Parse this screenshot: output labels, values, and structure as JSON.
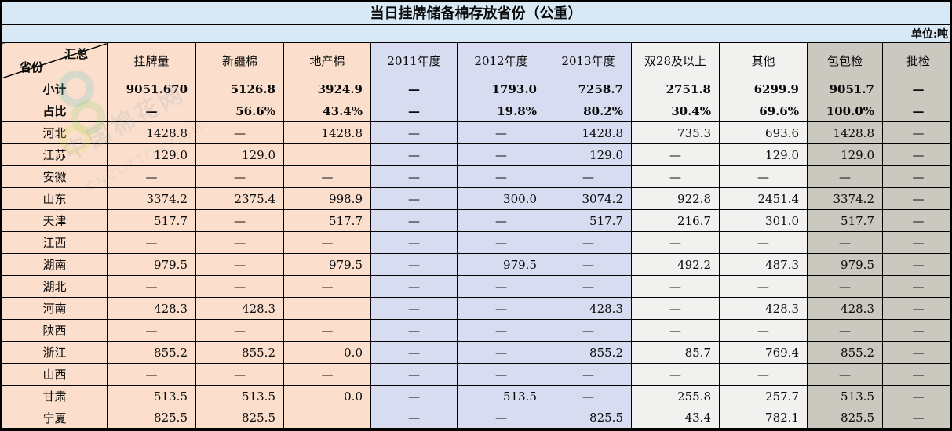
{
  "title": "当日挂牌储备棉存放省份（公重）",
  "unit_label": "单位:吨",
  "corner": {
    "top_right": "汇总",
    "bottom_left": "省份"
  },
  "watermark": {
    "text": "中国棉花网",
    "subtext": "CNCOTTON.COM"
  },
  "colors": {
    "band_blue": "#d8e8f4",
    "peach": "#fbdfcc",
    "lavender": "#d8dcf0",
    "light_gray": "#f1f1ef",
    "dark_gray": "#cbc8c0",
    "border": "#000000"
  },
  "table": {
    "columns": [
      "挂牌量",
      "新疆棉",
      "地产棉",
      "2011年度",
      "2012年度",
      "2013年度",
      "双28及以上",
      "其他",
      "包包检",
      "批检"
    ],
    "rows": [
      {
        "label": "小计",
        "cells": [
          "9051.670",
          "5126.8",
          "3924.9",
          "—",
          "1793.0",
          "7258.7",
          "2751.8",
          "6299.9",
          "9051.7",
          "—"
        ]
      },
      {
        "label": "占比",
        "cells": [
          "—",
          "56.6%",
          "43.4%",
          "—",
          "19.8%",
          "80.2%",
          "30.4%",
          "69.6%",
          "100.0%",
          "—"
        ]
      },
      {
        "label": "河北",
        "cells": [
          "1428.8",
          "—",
          "1428.8",
          "—",
          "—",
          "1428.8",
          "735.3",
          "693.6",
          "1428.8",
          "—"
        ]
      },
      {
        "label": "江苏",
        "cells": [
          "129.0",
          "129.0",
          "",
          "—",
          "—",
          "129.0",
          "—",
          "129.0",
          "129.0",
          "—"
        ]
      },
      {
        "label": "安徽",
        "cells": [
          "—",
          "—",
          "—",
          "—",
          "—",
          "—",
          "—",
          "—",
          "—",
          "—"
        ]
      },
      {
        "label": "山东",
        "cells": [
          "3374.2",
          "2375.4",
          "998.9",
          "—",
          "300.0",
          "3074.2",
          "922.8",
          "2451.4",
          "3374.2",
          "—"
        ]
      },
      {
        "label": "天津",
        "cells": [
          "517.7",
          "—",
          "517.7",
          "—",
          "—",
          "517.7",
          "216.7",
          "301.0",
          "517.7",
          "—"
        ]
      },
      {
        "label": "江西",
        "cells": [
          "—",
          "—",
          "—",
          "—",
          "—",
          "—",
          "—",
          "—",
          "—",
          "—"
        ]
      },
      {
        "label": "湖南",
        "cells": [
          "979.5",
          "—",
          "979.5",
          "—",
          "979.5",
          "—",
          "492.2",
          "487.3",
          "979.5",
          "—"
        ]
      },
      {
        "label": "湖北",
        "cells": [
          "—",
          "—",
          "—",
          "—",
          "—",
          "—",
          "—",
          "—",
          "—",
          "—"
        ]
      },
      {
        "label": "河南",
        "cells": [
          "428.3",
          "428.3",
          "",
          "—",
          "—",
          "428.3",
          "—",
          "428.3",
          "428.3",
          "—"
        ]
      },
      {
        "label": "陕西",
        "cells": [
          "—",
          "—",
          "—",
          "—",
          "—",
          "—",
          "—",
          "—",
          "—",
          "—"
        ]
      },
      {
        "label": "浙江",
        "cells": [
          "855.2",
          "855.2",
          "0.0",
          "—",
          "—",
          "855.2",
          "85.7",
          "769.4",
          "855.2",
          "—"
        ]
      },
      {
        "label": "山西",
        "cells": [
          "—",
          "—",
          "—",
          "—",
          "—",
          "—",
          "—",
          "—",
          "—",
          "—"
        ]
      },
      {
        "label": "甘肃",
        "cells": [
          "513.5",
          "513.5",
          "0.0",
          "—",
          "513.5",
          "—",
          "255.8",
          "257.7",
          "513.5",
          "—"
        ]
      },
      {
        "label": "宁夏",
        "cells": [
          "825.5",
          "825.5",
          "",
          "—",
          "—",
          "825.5",
          "43.4",
          "782.1",
          "825.5",
          "—"
        ]
      }
    ]
  }
}
